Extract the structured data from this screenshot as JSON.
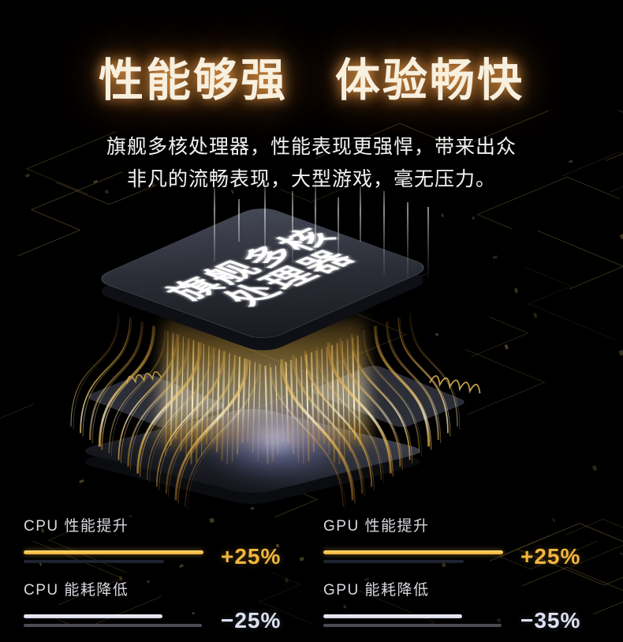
{
  "page": {
    "background": "#000000",
    "accent_gold": "#F2B63E",
    "accent_light": "#DDE1F1"
  },
  "title": {
    "text": "性能够强　体验畅快",
    "glow_color": "#FFAA50"
  },
  "subtitle": {
    "line1": "旗舰多核处理器，性能表现更强悍，带来出众",
    "line2": "非凡的流畅表现，大型游戏，毫无压力。"
  },
  "chip": {
    "label_line1": "旗舰多核",
    "label_line2": "处理器"
  },
  "stats": {
    "colors": {
      "increase_value": "#F2B63E",
      "decrease_value": "#DDE1F1",
      "bar_gold": "#F5BD45",
      "bar_light": "#E4E6F3",
      "bar_dark_reference": "#1F2230",
      "bar_gray_reference": "#4A4B54"
    },
    "columns": [
      {
        "rows": [
          {
            "label": "CPU 性能提升",
            "value": "+25%",
            "value_num": 25,
            "direction": "increase"
          },
          {
            "label": "CPU 能耗降低",
            "value": "−25%",
            "value_num": -25,
            "direction": "decrease"
          }
        ]
      },
      {
        "rows": [
          {
            "label": "GPU 性能提升",
            "value": "+25%",
            "value_num": 25,
            "direction": "increase"
          },
          {
            "label": "GPU 能耗降低",
            "value": "−35%",
            "value_num": -35,
            "direction": "decrease"
          }
        ]
      }
    ]
  }
}
